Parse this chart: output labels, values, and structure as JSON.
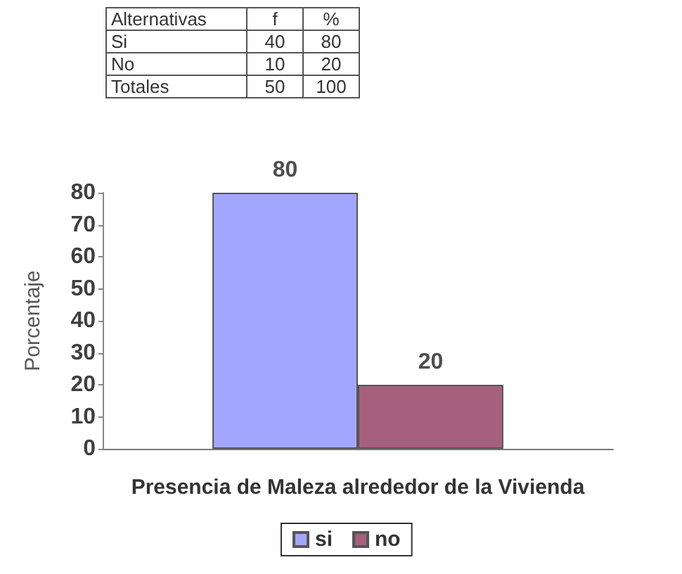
{
  "chart_data": [
    {
      "type": "other",
      "xlabel": "Alternativas",
      "categories": [
        "Si",
        "No",
        "Totales"
      ],
      "series": [
        {
          "name": "f",
          "values": [
            40,
            10,
            50
          ]
        },
        {
          "name": "%",
          "values": [
            80,
            20,
            100
          ]
        }
      ],
      "data_labels": true
    },
    {
      "type": "bar",
      "xlabel": "Presencia de Maleza alrededor de la Vivienda",
      "ylabel": "Porcentaje",
      "categories": [
        null
      ],
      "series": [
        {
          "name": "si",
          "color": "#a3a6fe",
          "values": [
            80
          ]
        },
        {
          "name": "no",
          "color": "#a6607e",
          "values": [
            20
          ]
        }
      ],
      "ylim": [
        0,
        80
      ],
      "yticks": [
        0,
        10,
        20,
        30,
        40,
        50,
        60,
        70,
        80
      ],
      "legend": "bottom",
      "data_labels": true
    }
  ]
}
